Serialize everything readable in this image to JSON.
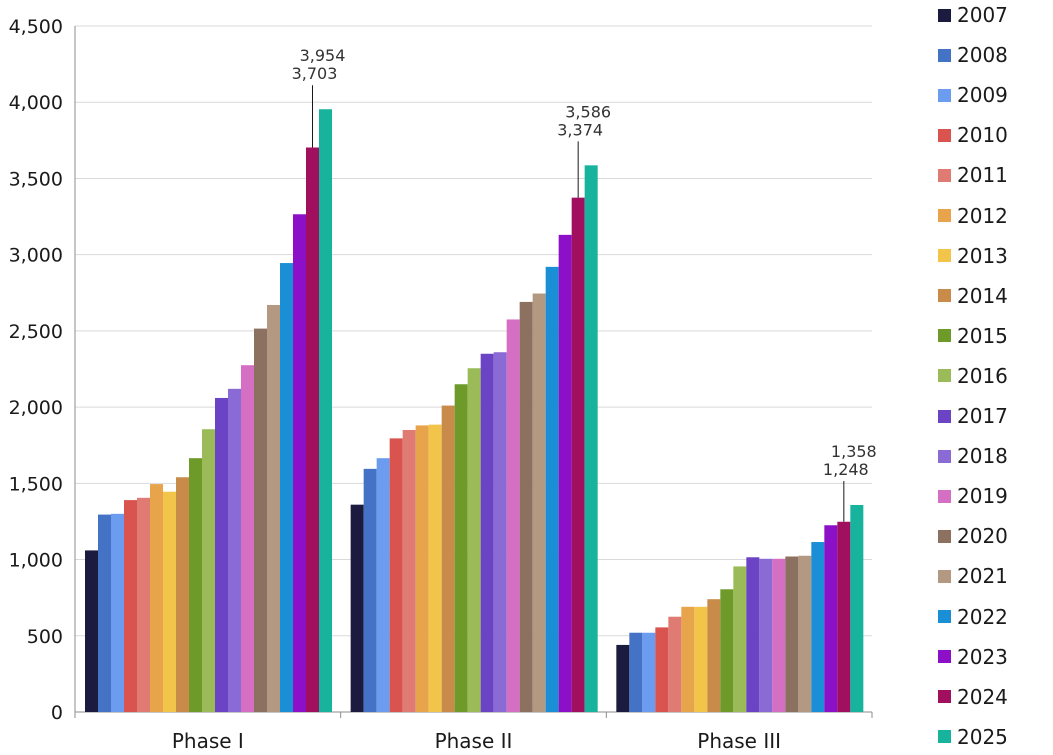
{
  "chart_data": {
    "type": "bar",
    "title": "",
    "xlabel": "",
    "ylabel": "",
    "ylim": [
      0,
      4500
    ],
    "yticks": [
      0,
      500,
      1000,
      1500,
      2000,
      2500,
      3000,
      3500,
      4000,
      4500
    ],
    "ytick_labels": [
      "0",
      "500",
      "1,000",
      "1,500",
      "2,000",
      "2,500",
      "3,000",
      "3,500",
      "4,000",
      "4,500"
    ],
    "categories": [
      "Phase I",
      "Phase II",
      "Phase III"
    ],
    "grid": true,
    "legend_position": "right",
    "series": [
      {
        "name": "2007",
        "color": "#1b1a3f",
        "values": [
          1060,
          1360,
          440
        ]
      },
      {
        "name": "2008",
        "color": "#4472c4",
        "values": [
          1295,
          1595,
          520
        ]
      },
      {
        "name": "2009",
        "color": "#6c9cf0",
        "values": [
          1300,
          1665,
          520
        ]
      },
      {
        "name": "2010",
        "color": "#d9534f",
        "values": [
          1390,
          1795,
          555
        ]
      },
      {
        "name": "2011",
        "color": "#e07b74",
        "values": [
          1405,
          1850,
          625
        ]
      },
      {
        "name": "2012",
        "color": "#e8a44a",
        "values": [
          1495,
          1880,
          690
        ]
      },
      {
        "name": "2013",
        "color": "#f2c449",
        "values": [
          1445,
          1885,
          690
        ]
      },
      {
        "name": "2014",
        "color": "#c98b4a",
        "values": [
          1540,
          2010,
          740
        ]
      },
      {
        "name": "2015",
        "color": "#6e9a2a",
        "values": [
          1665,
          2150,
          805
        ]
      },
      {
        "name": "2016",
        "color": "#9bbb59",
        "values": [
          1855,
          2255,
          955
        ]
      },
      {
        "name": "2017",
        "color": "#6a44c4",
        "values": [
          2060,
          2350,
          1015
        ]
      },
      {
        "name": "2018",
        "color": "#8a6ad4",
        "values": [
          2120,
          2360,
          1005
        ]
      },
      {
        "name": "2019",
        "color": "#d56fc4",
        "values": [
          2275,
          2575,
          1005
        ]
      },
      {
        "name": "2020",
        "color": "#8c7060",
        "values": [
          2515,
          2690,
          1020
        ]
      },
      {
        "name": "2021",
        "color": "#b39882",
        "values": [
          2670,
          2745,
          1025
        ]
      },
      {
        "name": "2022",
        "color": "#1a8fd6",
        "values": [
          2945,
          2920,
          1115
        ]
      },
      {
        "name": "2023",
        "color": "#8b10c8",
        "values": [
          3265,
          3130,
          1225
        ]
      },
      {
        "name": "2024",
        "color": "#a0105e",
        "values": [
          3703,
          3374,
          1248
        ]
      },
      {
        "name": "2025",
        "color": "#17b39c",
        "values": [
          3954,
          3586,
          1358
        ]
      }
    ],
    "annotations": [
      {
        "category": "Phase I",
        "series": "2024",
        "text": "3,703"
      },
      {
        "category": "Phase I",
        "series": "2025",
        "text": "3,954"
      },
      {
        "category": "Phase II",
        "series": "2024",
        "text": "3,374"
      },
      {
        "category": "Phase II",
        "series": "2025",
        "text": "3,586"
      },
      {
        "category": "Phase III",
        "series": "2024",
        "text": "1,248"
      },
      {
        "category": "Phase III",
        "series": "2025",
        "text": "1,358"
      }
    ]
  }
}
